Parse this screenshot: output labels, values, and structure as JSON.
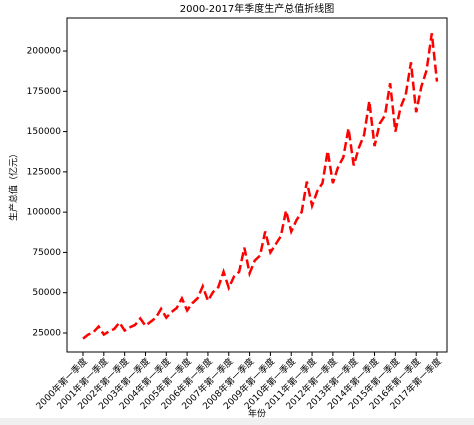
{
  "chart_data": {
    "type": "line",
    "title": "2000-2017年季度生产总值折线图",
    "x_label": "年份",
    "y_label": "生产总值（亿元）",
    "categories": [
      "2000年第一季度",
      null,
      null,
      null,
      "2001年第一季度",
      null,
      null,
      null,
      "2002年第一季度",
      null,
      null,
      null,
      "2003年第一季度",
      null,
      null,
      null,
      "2004年第一季度",
      null,
      null,
      null,
      "2005年第一季度",
      null,
      null,
      null,
      "2006年第一季度",
      null,
      null,
      null,
      "2007年第一季度",
      null,
      null,
      null,
      "2008年第一季度",
      null,
      null,
      null,
      "2009年第一季度",
      null,
      null,
      null,
      "2010年第一季度",
      null,
      null,
      null,
      "2011年第一季度",
      null,
      null,
      null,
      "2012年第一季度",
      null,
      null,
      null,
      "2013年第一季度",
      null,
      null,
      null,
      "2014年第一季度",
      null,
      null,
      null,
      "2015年第一季度",
      null,
      null,
      null,
      "2016年第一季度",
      null,
      null,
      null,
      "2017年第一季度"
    ],
    "series": [
      {
        "color": "#ff0000",
        "dashed": true,
        "values": [
          21500,
          24000,
          25500,
          29000,
          24000,
          26000,
          27500,
          31500,
          26500,
          28500,
          30000,
          34000,
          29500,
          32000,
          34500,
          40000,
          34500,
          38000,
          40500,
          46500,
          39000,
          43500,
          46500,
          54000,
          45000,
          50500,
          53500,
          63000,
          53000,
          60000,
          63000,
          78000,
          62000,
          70000,
          73000,
          88000,
          75000,
          80000,
          85000,
          101000,
          88000,
          95000,
          100000,
          119000,
          104000,
          113000,
          118000,
          138000,
          118000,
          128000,
          134000,
          152000,
          129000,
          140000,
          148000,
          169000,
          141000,
          155000,
          160000,
          180000,
          150000,
          165000,
          173000,
          193000,
          162000,
          178000,
          188000,
          211000,
          181000
        ]
      }
    ],
    "ylim": [
      13200,
      220500
    ],
    "yticks": [
      25000,
      50000,
      75000,
      100000,
      125000,
      150000,
      175000,
      200000
    ],
    "grid": false
  }
}
